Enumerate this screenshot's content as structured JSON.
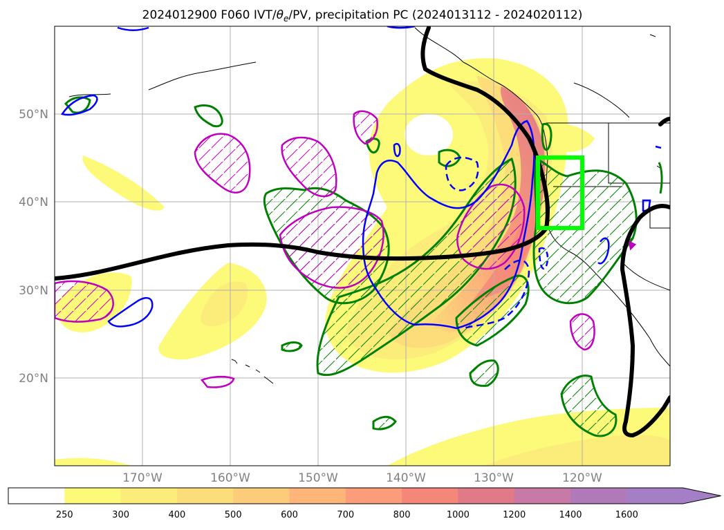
{
  "title": "2024012900 F060 IVT/θe/PV, precipitation PC (2024013112 - 2024020112)",
  "title_parts": {
    "prefix": "2024012900 F060 IVT/",
    "theta": "θ",
    "sub": "e",
    "suffix": "/PV, precipitation PC (2024013112 - 2024020112)"
  },
  "map": {
    "lon_range": [
      -180,
      -110
    ],
    "lat_range": [
      10,
      60
    ],
    "lon_ticks": [
      -170,
      -160,
      -150,
      -140,
      -130,
      -120
    ],
    "lon_tick_labels": [
      "170°W",
      "160°W",
      "150°W",
      "140°W",
      "130°W",
      "120°W"
    ],
    "lat_ticks": [
      20,
      30,
      40,
      50
    ],
    "lat_tick_labels": [
      "20°N",
      "30°N",
      "40°N",
      "50°N"
    ],
    "precip_box": {
      "lon": [
        -125,
        -120
      ],
      "lat": [
        37,
        45
      ],
      "color": "#00ff00"
    }
  },
  "colorbar": {
    "levels": [
      250,
      300,
      400,
      500,
      600,
      700,
      800,
      1000,
      1200,
      1400,
      1600
    ],
    "labels": [
      "250",
      "300",
      "400",
      "500",
      "600",
      "700",
      "800",
      "1000",
      "1200",
      "1400",
      "1600"
    ],
    "colors": [
      "#ffffff",
      "#fdfa7a",
      "#fcec7a",
      "#fddc7a",
      "#fdcc7a",
      "#fdb57a",
      "#fb9d7a",
      "#f5867a",
      "#e07a86",
      "#c77aa5",
      "#b07ab8",
      "#a47fc6"
    ],
    "extend": "max"
  },
  "colors": {
    "theta_e_contour": "#000000",
    "pv_positive": "#bf00bf",
    "pv_low": "#0000ff",
    "ivt_anomaly": "#008000"
  }
}
